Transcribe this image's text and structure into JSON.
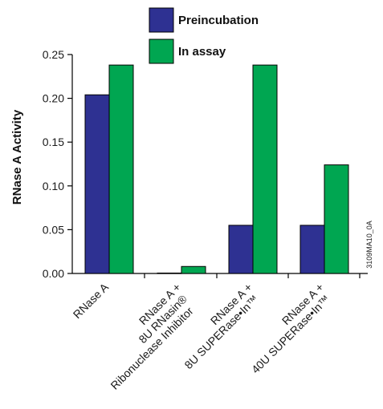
{
  "chart_data": {
    "type": "bar",
    "categories": [
      [
        "RNase A"
      ],
      [
        "RNase A +",
        "8U RNasin®",
        "Ribonuclease Inhibitor"
      ],
      [
        "RNase A +",
        "8U SUPERase•In™"
      ],
      [
        "RNase A +",
        "40U SUPERase•In™"
      ]
    ],
    "series": [
      {
        "name": "Preincubation",
        "values": [
          0.204,
          0.0005,
          0.055,
          0.055
        ],
        "color": "#2e3192"
      },
      {
        "name": "In assay",
        "values": [
          0.238,
          0.008,
          0.238,
          0.124
        ],
        "color": "#00a651"
      }
    ],
    "ylabel": "RNase A Activity",
    "ylim": [
      0,
      0.25
    ],
    "yticks": [
      "0.00",
      "0.05",
      "0.10",
      "0.15",
      "0.20",
      "0.25"
    ],
    "legend_placement": "top-center",
    "grid": false,
    "figure_code": "3109MA10_0A"
  }
}
